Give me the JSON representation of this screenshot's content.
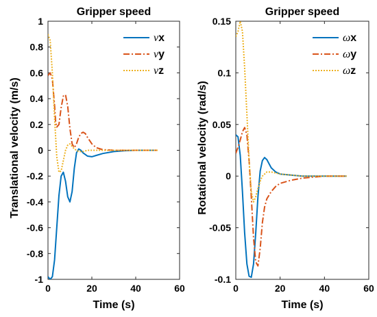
{
  "chart_data": [
    {
      "type": "line",
      "title": "Gripper speed",
      "xlabel": "Time (s)",
      "ylabel": "Translational velocity (m/s)",
      "xlim": [
        0,
        60
      ],
      "ylim": [
        -1,
        1
      ],
      "xticks": [
        0,
        20,
        40,
        60
      ],
      "yticks": [
        -1,
        -0.8,
        -0.6,
        -0.4,
        -0.2,
        0,
        0.2,
        0.4,
        0.6,
        0.8,
        1
      ],
      "xtick_labels": [
        "0",
        "20",
        "40",
        "60"
      ],
      "ytick_labels": [
        "-1",
        "-0.8",
        "-0.6",
        "-0.4",
        "-0.2",
        "0",
        "0.2",
        "0.4",
        "0.6",
        "0.8",
        "1"
      ],
      "grid": false,
      "legend_position": "top-right",
      "series": [
        {
          "symbol": "ν",
          "name": "x",
          "color": "#0072BD",
          "style": "solid",
          "x": [
            0,
            1,
            2,
            3,
            4,
            5,
            6,
            7,
            8,
            9,
            10,
            11,
            12,
            13,
            14,
            15,
            16,
            18,
            20,
            22,
            25,
            30,
            35,
            40,
            45,
            50
          ],
          "y": [
            -0.98,
            -1.0,
            -0.98,
            -0.85,
            -0.6,
            -0.35,
            -0.2,
            -0.17,
            -0.24,
            -0.36,
            -0.4,
            -0.32,
            -0.14,
            -0.02,
            0.01,
            0.0,
            -0.02,
            -0.045,
            -0.05,
            -0.04,
            -0.025,
            -0.01,
            -0.003,
            0.0,
            0.0,
            0.0
          ]
        },
        {
          "symbol": "ν",
          "name": "y",
          "color": "#D95319",
          "style": "dash-dot",
          "x": [
            0,
            1,
            2,
            3,
            3.5,
            4,
            5,
            6,
            7,
            8,
            9,
            10,
            11,
            12,
            13,
            14,
            15,
            16,
            17,
            18,
            20,
            22,
            25,
            30,
            35,
            40,
            45,
            50
          ],
          "y": [
            0.58,
            0.6,
            0.55,
            0.35,
            0.22,
            0.18,
            0.2,
            0.33,
            0.42,
            0.43,
            0.34,
            0.17,
            0.05,
            0.02,
            0.05,
            0.1,
            0.13,
            0.14,
            0.13,
            0.1,
            0.05,
            0.02,
            0.005,
            0.0,
            0.0,
            0.0,
            0.0,
            0.0
          ]
        },
        {
          "symbol": "ν",
          "name": "z",
          "color": "#EDB120",
          "style": "dotted",
          "x": [
            0,
            1,
            2,
            3,
            4,
            5,
            6,
            7,
            8,
            9,
            10,
            11,
            12,
            14,
            16,
            18,
            20,
            25,
            30,
            40,
            50
          ],
          "y": [
            0.9,
            0.85,
            0.6,
            0.25,
            -0.05,
            -0.17,
            -0.16,
            -0.08,
            0.0,
            0.04,
            0.05,
            0.03,
            0.01,
            -0.01,
            -0.01,
            0.0,
            0.0,
            0.0,
            0.0,
            0.0,
            0.0
          ]
        }
      ]
    },
    {
      "type": "line",
      "title": "Gripper speed",
      "xlabel": "Time (s)",
      "ylabel": "Rotational velocity (rad/s)",
      "xlim": [
        0,
        60
      ],
      "ylim": [
        -0.1,
        0.15
      ],
      "xticks": [
        0,
        20,
        40,
        60
      ],
      "yticks": [
        -0.1,
        -0.05,
        0,
        0.05,
        0.1,
        0.15
      ],
      "xtick_labels": [
        "0",
        "20",
        "40",
        "60"
      ],
      "ytick_labels": [
        "-0.1",
        "-0.05",
        "0",
        "0.05",
        "0.1",
        "0.15"
      ],
      "grid": false,
      "legend_position": "top-right",
      "series": [
        {
          "symbol": "ω",
          "name": "x",
          "color": "#0072BD",
          "style": "solid",
          "x": [
            0,
            1,
            2,
            3,
            4,
            5,
            6,
            7,
            8,
            9,
            10,
            11,
            12,
            13,
            14,
            15,
            16,
            18,
            20,
            25,
            30,
            35,
            40,
            45,
            50
          ],
          "y": [
            0.04,
            0.038,
            0.02,
            -0.015,
            -0.055,
            -0.085,
            -0.097,
            -0.098,
            -0.085,
            -0.055,
            -0.02,
            0.005,
            0.015,
            0.018,
            0.016,
            0.012,
            0.008,
            0.004,
            0.002,
            0.001,
            0.0,
            0.0,
            0.0,
            0.0,
            0.0
          ]
        },
        {
          "symbol": "ω",
          "name": "y",
          "color": "#D95319",
          "style": "dash-dot",
          "x": [
            0,
            1,
            2,
            3,
            4,
            5,
            6,
            7,
            8,
            9,
            10,
            11,
            12,
            13,
            14,
            16,
            18,
            20,
            25,
            30,
            35,
            40,
            45,
            50
          ],
          "y": [
            0.022,
            0.028,
            0.035,
            0.043,
            0.047,
            0.04,
            0.015,
            -0.02,
            -0.06,
            -0.083,
            -0.087,
            -0.07,
            -0.045,
            -0.03,
            -0.022,
            -0.015,
            -0.01,
            -0.007,
            -0.004,
            -0.002,
            -0.001,
            0.0,
            0.0,
            0.0
          ]
        },
        {
          "symbol": "ω",
          "name": "z",
          "color": "#EDB120",
          "style": "dotted",
          "x": [
            0,
            1,
            2,
            3,
            4,
            5,
            6,
            7,
            8,
            9,
            10,
            11,
            12,
            14,
            16,
            18,
            20,
            25,
            30,
            40,
            50
          ],
          "y": [
            0.135,
            0.14,
            0.15,
            0.14,
            0.105,
            0.06,
            0.015,
            -0.015,
            -0.025,
            -0.02,
            -0.012,
            -0.005,
            0.0,
            0.004,
            0.004,
            0.003,
            0.002,
            0.001,
            0.0,
            0.0,
            0.0
          ]
        }
      ]
    }
  ]
}
